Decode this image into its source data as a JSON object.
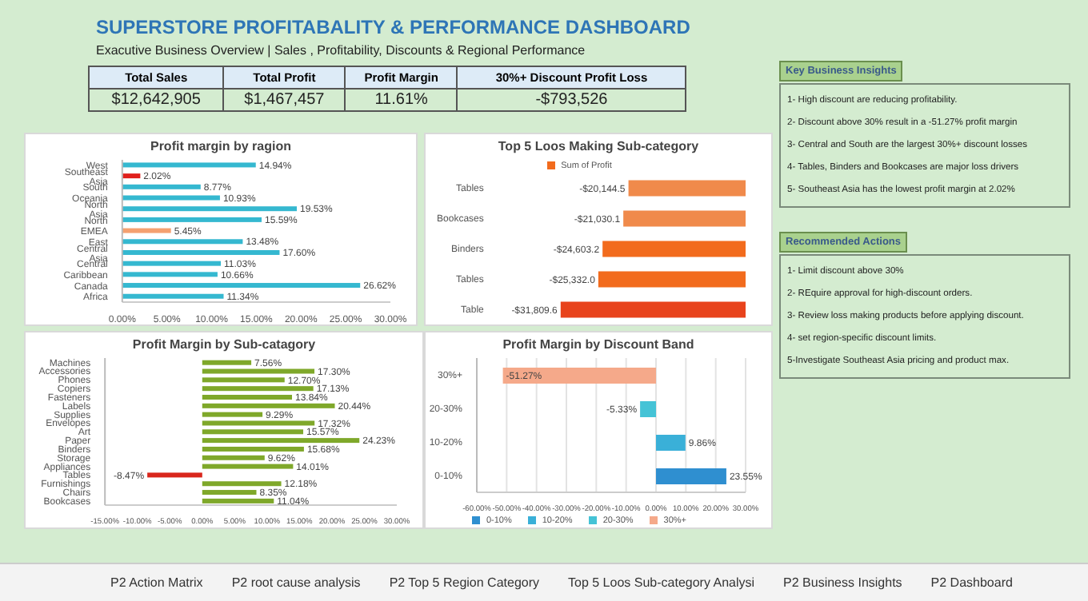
{
  "chart_data": [
    {
      "type": "other",
      "title": "SUPERSTORE PROFITABALITY & PERFORMANCE DASHBOARD",
      "subtitle": "Exacutive Business Overview | Sales , Profitability, Discounts & Regional Performance",
      "categories": [
        "Total Sales",
        "Total Profit",
        "Profit Margin",
        "30%+ Discount Profit Loss"
      ],
      "value_labels": [
        "$12,642,905",
        "$1,467,457",
        "11.61%",
        "-$793,526"
      ]
    },
    {
      "type": "bar",
      "orientation": "horizontal",
      "title": "Profit margin by ragion",
      "categories": [
        "West",
        "Southeast Asia",
        "South",
        "Oceania",
        "North Asia",
        "North",
        "EMEA",
        "East",
        "Central Asia",
        "Central",
        "Caribbean",
        "Canada",
        "Africa"
      ],
      "series": [
        {
          "values": [
            14.94,
            2.02,
            8.77,
            10.93,
            19.53,
            15.59,
            5.45,
            13.48,
            17.6,
            11.03,
            10.66,
            26.62,
            11.34
          ],
          "colors": [
            "#35b8d0",
            "#e0201c",
            "#35b8d0",
            "#35b8d0",
            "#35b8d0",
            "#35b8d0",
            "#f4a070",
            "#35b8d0",
            "#35b8d0",
            "#35b8d0",
            "#35b8d0",
            "#35b8d0",
            "#35b8d0"
          ],
          "value_labels": [
            "14.94%",
            "2.02%",
            "8.77%",
            "10.93%",
            "19.53%",
            "15.59%",
            "5.45%",
            "13.48%",
            "17.60%",
            "11.03%",
            "10.66%",
            "26.62%",
            "11.34%"
          ]
        }
      ],
      "xlim": [
        0,
        30
      ],
      "xticks": [
        {
          "value": 0,
          "label": "0.00%"
        },
        {
          "value": 5,
          "label": "5.00%"
        },
        {
          "value": 10,
          "label": "10.00%"
        },
        {
          "value": 15,
          "label": "15.00%"
        },
        {
          "value": 20,
          "label": "20.00%"
        },
        {
          "value": 25,
          "label": "25.00%"
        },
        {
          "value": 30,
          "label": "30.00%"
        }
      ]
    },
    {
      "type": "bar",
      "orientation": "horizontal",
      "title": "Top 5 Loos Making Sub-category",
      "categories": [
        "Tables",
        "Bookcases",
        "Binders",
        "Tables",
        "Table"
      ],
      "series": [
        {
          "name": "Sum of Profit",
          "color": "#f26b1d",
          "values": [
            -20144.5,
            -21030.1,
            -24603.2,
            -25332.0,
            -31809.6
          ],
          "colors": [
            "#f08a4b",
            "#f08a4b",
            "#f26b1d",
            "#f26b1d",
            "#e8431c"
          ],
          "value_labels": [
            "-$20,144.5",
            "-$21,030.1",
            "-$24,603.2",
            "-$25,332.0",
            "-$31,809.6"
          ]
        }
      ],
      "legend": "top",
      "tick_labels": "y"
    },
    {
      "type": "bar",
      "orientation": "horizontal",
      "title": "Profit Margin by Sub-catagory",
      "categories": [
        "Machines",
        "Accessories",
        "Phones",
        "Copiers",
        "Fasteners",
        "Labels",
        "Supplies",
        "Envelopes",
        "Art",
        "Paper",
        "Binders",
        "Storage",
        "Appliances",
        "Tables",
        "Furnishings",
        "Chairs",
        "Bookcases"
      ],
      "series": [
        {
          "values": [
            7.56,
            17.3,
            12.7,
            17.13,
            13.84,
            20.44,
            9.29,
            17.32,
            15.57,
            24.23,
            15.68,
            9.62,
            14.01,
            -8.47,
            12.18,
            8.35,
            11.04
          ],
          "colors": [
            "#7fa82a",
            "#7fa82a",
            "#7fa82a",
            "#7fa82a",
            "#7fa82a",
            "#7fa82a",
            "#7fa82a",
            "#7fa82a",
            "#7fa82a",
            "#7fa82a",
            "#7fa82a",
            "#7fa82a",
            "#7fa82a",
            "#d9261c",
            "#7fa82a",
            "#7fa82a",
            "#7fa82a"
          ],
          "value_labels": [
            "7.56%",
            "17.30%",
            "12.70%",
            "17.13%",
            "13.84%",
            "20.44%",
            "9.29%",
            "17.32%",
            "15.57%",
            "24.23%",
            "15.68%",
            "9.62%",
            "14.01%",
            "-8.47%",
            "12.18%",
            "8.35%",
            "11.04%"
          ]
        }
      ],
      "xlim": [
        -15,
        30
      ],
      "xticks": [
        {
          "value": -15,
          "label": "-15.00%"
        },
        {
          "value": -10,
          "label": "-10.00%"
        },
        {
          "value": -5,
          "label": "-5.00%"
        },
        {
          "value": 0,
          "label": "0.00%"
        },
        {
          "value": 5,
          "label": "5.00%"
        },
        {
          "value": 10,
          "label": "10.00%"
        },
        {
          "value": 15,
          "label": "15.00%"
        },
        {
          "value": 20,
          "label": "20.00%"
        },
        {
          "value": 25,
          "label": "25.00%"
        },
        {
          "value": 30,
          "label": "30.00%"
        }
      ]
    },
    {
      "type": "bar",
      "orientation": "horizontal",
      "stacked": true,
      "title": "Profit Margin by Discount Band",
      "categories": [
        "30%+",
        "20-30%",
        "10-20%",
        "0-10%"
      ],
      "series": [
        {
          "name": "0-10%",
          "color": "#2f8fd0",
          "values": [
            null,
            null,
            null,
            23.55
          ],
          "value_labels": [
            null,
            null,
            null,
            "23.55%"
          ]
        },
        {
          "name": "10-20%",
          "color": "#3ab0d8",
          "values": [
            null,
            null,
            9.86,
            null
          ],
          "value_labels": [
            null,
            null,
            "9.86%",
            null
          ]
        },
        {
          "name": "20-30%",
          "color": "#45c3d6",
          "values": [
            null,
            -5.33,
            null,
            null
          ],
          "value_labels": [
            null,
            "-5.33%",
            null,
            null
          ]
        },
        {
          "name": "30%+",
          "color": "#f5a98a",
          "values": [
            -51.27,
            null,
            null,
            null
          ],
          "value_labels": [
            "-51.27%",
            null,
            null,
            null
          ]
        }
      ],
      "xlim": [
        -60,
        30
      ],
      "xticks": [
        {
          "value": -60,
          "label": "-60.00%"
        },
        {
          "value": -50,
          "label": "-50.00%"
        },
        {
          "value": -40,
          "label": "-40.00%"
        },
        {
          "value": -30,
          "label": "-30.00%"
        },
        {
          "value": -20,
          "label": "-20.00%"
        },
        {
          "value": -10,
          "label": "-10.00%"
        },
        {
          "value": 0,
          "label": "0.00%"
        },
        {
          "value": 10,
          "label": "10.00%"
        },
        {
          "value": 20,
          "label": "20.00%"
        },
        {
          "value": 30,
          "label": "30.00%"
        }
      ],
      "grid": "x",
      "legend": "bottom"
    },
    {
      "type": "other",
      "title": "Key Business Insights",
      "annotations": [
        "1- High discount are reducing profitability.",
        "2- Discount above 30% result in a -51.27% profit margin",
        "3- Central and South are the largest 30%+ discount losses",
        "4- Tables, Binders and Bookcases are major loss drivers",
        "5- Southeast Asia has the lowest profit margin at 2.02%"
      ]
    },
    {
      "type": "other",
      "title": "Recommended Actions",
      "annotations": [
        "1- Limit discount above 30%",
        "2- REquire approval for high-discount orders.",
        "3- Review loss making products before applying discount.",
        "4- set region-specific discount limits.",
        "5-Investigate Southeast Asia pricing and product max."
      ]
    },
    {
      "type": "other",
      "annotations": [
        "P2 Action Matrix",
        "P2 root cause analysis",
        "P2 Top 5 Region Category",
        "Top 5 Loos Sub-category Analysi",
        "P2 Business Insights",
        "P2 Dashboard"
      ]
    }
  ]
}
